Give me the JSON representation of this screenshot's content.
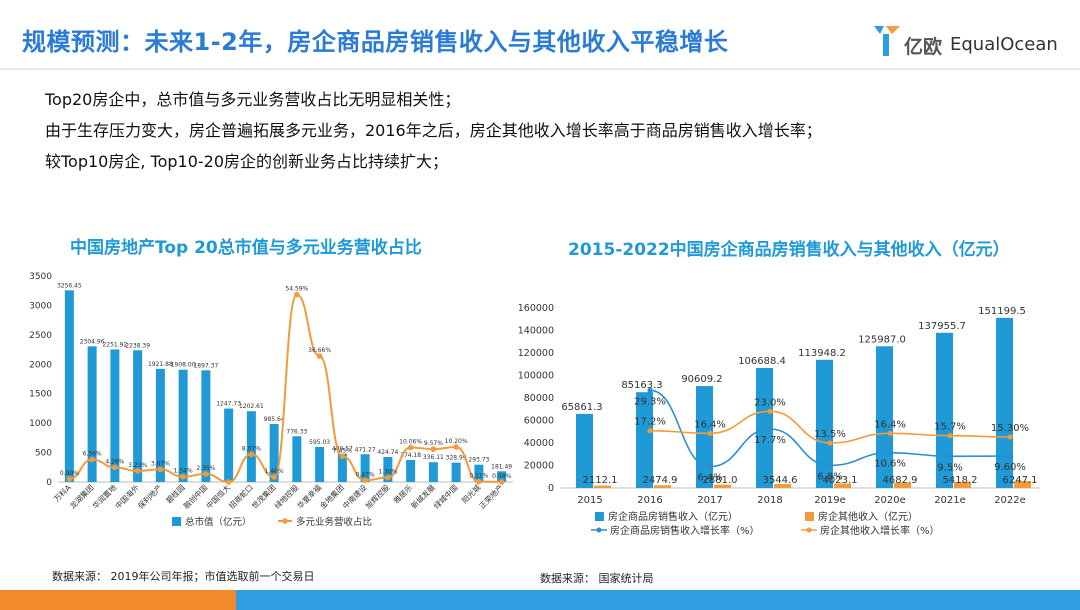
{
  "header": {
    "title": "规模预测：未来1-2年，房企商品房销售收入与其他收入平稳增长",
    "logo_cn": "亿欧",
    "logo_en": "EqualOcean"
  },
  "bullets": [
    "Top20房企中，总市值与多元业务营收占比无明显相关性；",
    "由于生存压力变大，房企普遍拓展多元业务，2016年之后，房企其他收入增长率高于商品房销售收入增长率；",
    "较Top10房企, Top10-20房企的创新业务占比持续扩大；"
  ],
  "colors": {
    "blue": "#1f9ad6",
    "orange": "#f39a3a",
    "title_blue": "#2a7bd6"
  },
  "chart_data": [
    {
      "type": "bar",
      "title": "中国房地产Top 20总市值与多元业务营收占比",
      "categories": [
        "万科A",
        "龙湖集团",
        "华润置地",
        "中国海外",
        "保利地产",
        "碧桂园",
        "融创中国",
        "中国恒大",
        "招商蛇口",
        "世茂集团",
        "绿地控股",
        "华夏幸福",
        "金地集团",
        "中南建设",
        "旭辉控股",
        "雅居乐",
        "新城发展",
        "绿城中国",
        "阳光城",
        "正荣地产"
      ],
      "ylim": [
        0,
        3500
      ],
      "yticks": [
        0,
        500,
        1000,
        1500,
        2000,
        2500,
        3000,
        3500
      ],
      "series": [
        {
          "name": "总市值（亿元）",
          "values": [
            3256.45,
            2304.96,
            2251.92,
            2238.39,
            1921.88,
            1908.0,
            1897.37,
            1247.73,
            1202.61,
            985.64,
            776.33,
            595.03,
            480.57,
            471.27,
            424.74,
            374.18,
            336.11,
            328.99,
            293.73,
            181.49
          ],
          "labels": [
            "3256.45",
            "2304.96",
            "2251.92",
            "2238.39",
            "1921.88",
            "1908.00",
            "1897.37",
            "1247.73",
            "1202.61",
            "985.64",
            "776.33",
            "595.03",
            "480.57",
            "471.27",
            "424.74",
            "374.18",
            "336.11",
            "328.99",
            "293.73",
            "181.49"
          ]
        },
        {
          "name": "多元业务营收占比",
          "values": [
            0.9,
            6.56,
            4.26,
            3.23,
            3.67,
            1.54,
            2.35,
            0.0,
            8.07,
            1.46,
            54.59,
            36.66,
            7.45,
            0.47,
            1.3,
            10.06,
            9.57,
            10.2,
            0.11,
            0.04
          ],
          "labels": [
            "0.90%",
            "6.56%",
            "4.26%",
            "3.23%",
            "3.67%",
            "1.54%",
            "2.35%",
            "",
            "8.07%",
            "1.46%",
            "54.59%",
            "36.66%",
            "7.45%",
            "0.47%",
            "1.30%",
            "10.06%",
            "9.57%",
            "10.20%",
            "0.11%",
            "0.04%"
          ]
        }
      ],
      "legend": [
        "总市值（亿元）",
        "多元业务营收占比"
      ]
    },
    {
      "type": "bar",
      "title": "2015-2022中国房企商品房销售收入与其他收入（亿元）",
      "categories": [
        "2015",
        "2016",
        "2017",
        "2018",
        "2019e",
        "2020e",
        "2021e",
        "2022e"
      ],
      "ylim": [
        0,
        160000
      ],
      "yticks": [
        0,
        20000,
        40000,
        60000,
        80000,
        100000,
        120000,
        140000,
        160000
      ],
      "series": [
        {
          "name": "房企商品房销售收入（亿元）",
          "values": [
            65861.3,
            85163.3,
            90609.2,
            106688.4,
            113948.2,
            125987.0,
            137955.7,
            151199.5
          ],
          "labels": [
            "65861.3",
            "85163.3",
            "90609.2",
            "106688.4",
            "113948.2",
            "125987.0",
            "137955.7",
            "151199.5"
          ]
        },
        {
          "name": "房企其他收入（亿元）",
          "values": [
            2112.1,
            2474.9,
            2881.0,
            3544.6,
            4023.1,
            4682.9,
            5418.2,
            6247.1
          ],
          "labels": [
            "2112.1",
            "2474.9",
            "2881.0",
            "3544.6",
            "4023.1",
            "4682.9",
            "5418.2",
            "6247.1"
          ]
        },
        {
          "name": "房企商品房销售收入增长率（%）",
          "values": [
            null,
            29.3,
            6.4,
            17.7,
            6.8,
            10.6,
            9.5,
            9.6
          ],
          "labels": [
            "",
            "29.3%",
            "6.4%",
            "17.7%",
            "6.8%",
            "10.6%",
            "9.5%",
            "9.60%"
          ]
        },
        {
          "name": "房企其他收入增长率（%）",
          "values": [
            null,
            17.2,
            16.4,
            23.0,
            13.5,
            16.4,
            15.7,
            15.3
          ],
          "labels": [
            "",
            "17.2%",
            "16.4%",
            "23.0%",
            "13.5%",
            "16.4%",
            "15.7%",
            "15.30%"
          ]
        }
      ],
      "legend": [
        "房企商品房销售收入（亿元）",
        "房企其他收入（亿元）",
        "房企商品房销售收入增长率（%）",
        "房企其他收入增长率（%）"
      ]
    }
  ],
  "sources": {
    "left": "数据来源： 2019年公司年报；市值选取前一个交易日",
    "right": "数据来源： 国家统计局"
  }
}
